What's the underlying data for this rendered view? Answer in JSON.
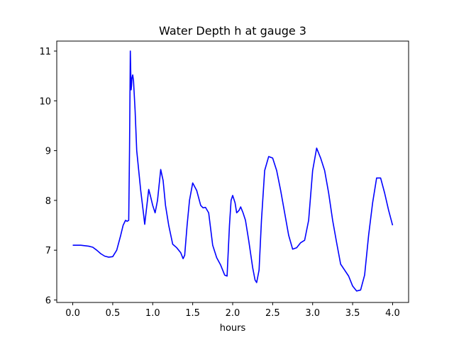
{
  "chart_data": {
    "type": "line",
    "title": "Water Depth h at gauge 3",
    "xlabel": "hours",
    "ylabel": "",
    "xlim": [
      -0.2,
      4.2
    ],
    "ylim": [
      5.95,
      11.2
    ],
    "xticks": [
      0.0,
      0.5,
      1.0,
      1.5,
      2.0,
      2.5,
      3.0,
      3.5,
      4.0
    ],
    "xtick_labels": [
      "0.0",
      "0.5",
      "1.0",
      "1.5",
      "2.0",
      "2.5",
      "3.0",
      "3.5",
      "4.0"
    ],
    "yticks": [
      6,
      7,
      8,
      9,
      10,
      11
    ],
    "ytick_labels": [
      "6",
      "7",
      "8",
      "9",
      "10",
      "11"
    ],
    "grid": false,
    "series": [
      {
        "color": "#0000ff",
        "x": [
          0.0,
          0.1,
          0.2,
          0.25,
          0.3,
          0.35,
          0.4,
          0.45,
          0.5,
          0.55,
          0.6,
          0.63,
          0.66,
          0.68,
          0.7,
          0.71,
          0.72,
          0.725,
          0.73,
          0.735,
          0.74,
          0.75,
          0.76,
          0.78,
          0.8,
          0.85,
          0.88,
          0.9,
          0.92,
          0.95,
          0.97,
          1.0,
          1.03,
          1.06,
          1.1,
          1.13,
          1.16,
          1.2,
          1.25,
          1.3,
          1.35,
          1.38,
          1.4,
          1.43,
          1.46,
          1.5,
          1.55,
          1.6,
          1.63,
          1.66,
          1.7,
          1.75,
          1.8,
          1.85,
          1.9,
          1.93,
          1.96,
          1.98,
          2.0,
          2.03,
          2.05,
          2.08,
          2.1,
          2.13,
          2.16,
          2.2,
          2.25,
          2.28,
          2.3,
          2.33,
          2.36,
          2.4,
          2.45,
          2.5,
          2.55,
          2.6,
          2.65,
          2.7,
          2.75,
          2.8,
          2.85,
          2.9,
          2.95,
          3.0,
          3.05,
          3.1,
          3.15,
          3.2,
          3.25,
          3.3,
          3.35,
          3.4,
          3.45,
          3.5,
          3.55,
          3.6,
          3.65,
          3.7,
          3.75,
          3.8,
          3.85,
          3.9,
          3.95,
          4.0
        ],
        "y": [
          7.1,
          7.1,
          7.08,
          7.06,
          7.0,
          6.93,
          6.88,
          6.86,
          6.87,
          7.0,
          7.3,
          7.5,
          7.6,
          7.58,
          7.6,
          9.0,
          11.0,
          10.6,
          10.22,
          10.3,
          10.45,
          10.52,
          10.4,
          9.8,
          9.0,
          8.2,
          7.8,
          7.52,
          7.8,
          8.22,
          8.1,
          7.9,
          7.75,
          8.0,
          8.62,
          8.4,
          7.9,
          7.5,
          7.12,
          7.05,
          6.95,
          6.83,
          6.9,
          7.5,
          8.0,
          8.35,
          8.2,
          7.9,
          7.85,
          7.86,
          7.75,
          7.1,
          6.85,
          6.7,
          6.5,
          6.48,
          7.5,
          8.0,
          8.1,
          7.95,
          7.75,
          7.8,
          7.87,
          7.75,
          7.6,
          7.2,
          6.65,
          6.4,
          6.35,
          6.6,
          7.6,
          8.6,
          8.88,
          8.85,
          8.6,
          8.2,
          7.75,
          7.3,
          7.02,
          7.05,
          7.15,
          7.2,
          7.6,
          8.6,
          9.05,
          8.85,
          8.6,
          8.15,
          7.6,
          7.15,
          6.72,
          6.6,
          6.48,
          6.28,
          6.18,
          6.2,
          6.5,
          7.3,
          7.95,
          8.45,
          8.45,
          8.15,
          7.8,
          7.5
        ]
      }
    ]
  }
}
